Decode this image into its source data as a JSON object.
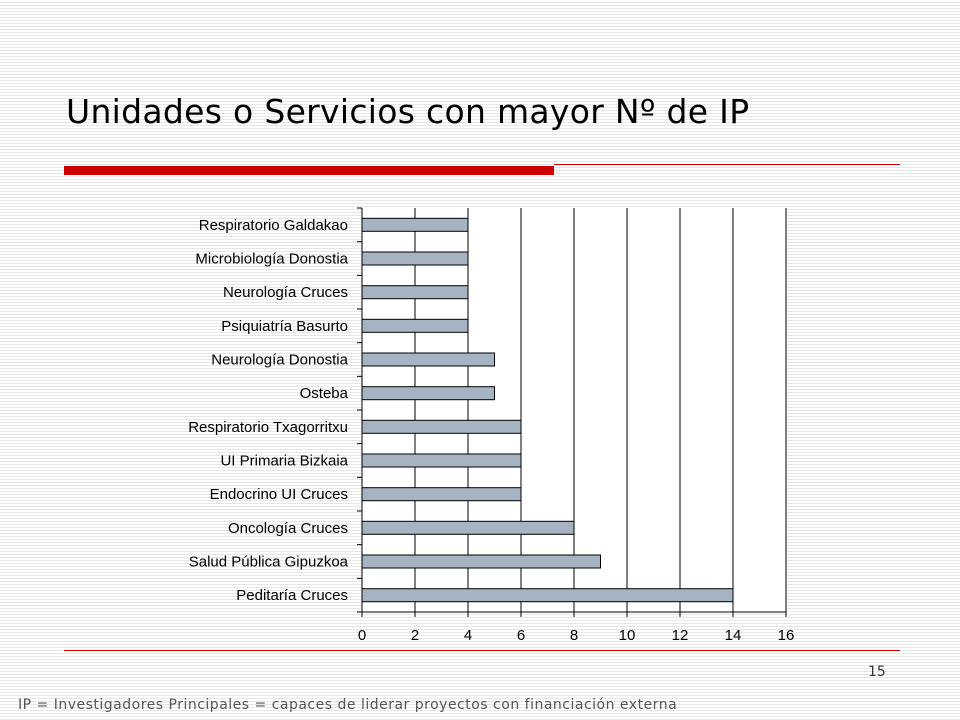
{
  "slide": {
    "title": "Unidades o Servicios con mayor Nº de IP",
    "page_number": "15",
    "footnote": "IP = Investigadores Principales = capaces de liderar proyectos con financiación externa",
    "accent_color": "#cc0000"
  },
  "chart_data": {
    "type": "bar",
    "orientation": "horizontal",
    "title": "",
    "xlabel": "",
    "ylabel": "",
    "categories": [
      "Respiratorio Galdakao",
      "Microbiología Donostia",
      "Neurología Cruces",
      "Psiquiatría Basurto",
      "Neurología Donostia",
      "Osteba",
      "Respiratorio Txagorritxu",
      "UI Primaria Bizkaia",
      "Endocrino UI Cruces",
      "Oncología Cruces",
      "Salud Pública Gipuzkoa",
      "Peditaría Cruces"
    ],
    "values": [
      4,
      4,
      4,
      4,
      5,
      5,
      6,
      6,
      6,
      8,
      9,
      14
    ],
    "xlim": [
      0,
      16
    ],
    "xticks": [
      0,
      2,
      4,
      6,
      8,
      10,
      12,
      14,
      16
    ],
    "grid": true,
    "legend": "none",
    "bar_color": "#a6b3c2"
  }
}
